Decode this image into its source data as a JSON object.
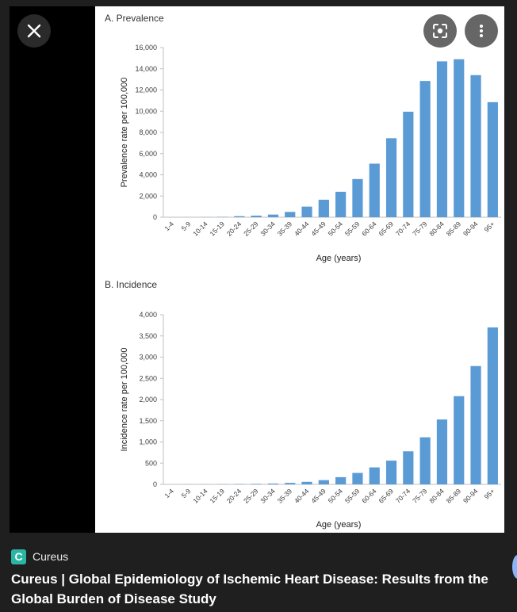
{
  "viewer": {
    "close_icon": "close-icon",
    "lens_icon": "lens-icon",
    "more_icon": "more-vert-icon",
    "source_logo_letter": "C",
    "source_name": "Cureus",
    "result_title": "Cureus | Global Epidemiology of Ischemic Heart Disease: Results from the Global Burden of Disease Study"
  },
  "colors": {
    "bar": "#5b9bd5",
    "axis": "#bfbfbf",
    "text": "#404040",
    "source_logo": "#2bb5a4"
  },
  "chart_data": [
    {
      "type": "bar",
      "title": "A. Prevalence",
      "xlabel": "Age (years)",
      "ylabel": "Prevalence rate per 100,000",
      "ylim": [
        0,
        16000
      ],
      "yticks": [
        0,
        2000,
        4000,
        6000,
        8000,
        10000,
        12000,
        14000,
        16000
      ],
      "ytick_labels": [
        "0",
        "2,000",
        "4,000",
        "6,000",
        "8,000",
        "10,000",
        "12,000",
        "14,000",
        "16,000"
      ],
      "grid": false,
      "categories": [
        "1-4",
        "5-9",
        "10-14",
        "15-19",
        "20-24",
        "25-29",
        "30-34",
        "35-39",
        "40-44",
        "45-49",
        "50-54",
        "55-59",
        "60-64",
        "65-69",
        "70-74",
        "75-79",
        "80-84",
        "85-89",
        "90-94",
        "95+"
      ],
      "values": [
        2,
        5,
        10,
        30,
        100,
        150,
        250,
        500,
        1000,
        1650,
        2400,
        3600,
        5050,
        7450,
        9950,
        12850,
        14700,
        14900,
        13400,
        10850
      ]
    },
    {
      "type": "bar",
      "title": "B. Incidence",
      "xlabel": "Age (years)",
      "ylabel": "Incidence rate per 100,000",
      "ylim": [
        0,
        4000
      ],
      "yticks": [
        0,
        500,
        1000,
        1500,
        2000,
        2500,
        3000,
        3500,
        4000
      ],
      "ytick_labels": [
        "0",
        "500",
        "1,000",
        "1,500",
        "2,000",
        "2,500",
        "3,000",
        "3,500",
        "4,000"
      ],
      "grid": false,
      "categories": [
        "1-4",
        "5-9",
        "10-14",
        "15-19",
        "20-24",
        "25-29",
        "30-34",
        "35-39",
        "40-44",
        "45-49",
        "50-54",
        "55-59",
        "60-64",
        "65-69",
        "70-74",
        "75-79",
        "80-84",
        "85-89",
        "90-94",
        "95+"
      ],
      "values": [
        0,
        1,
        2,
        4,
        8,
        12,
        20,
        35,
        60,
        100,
        170,
        270,
        400,
        560,
        780,
        1110,
        1530,
        2080,
        2790,
        3700
      ]
    }
  ]
}
